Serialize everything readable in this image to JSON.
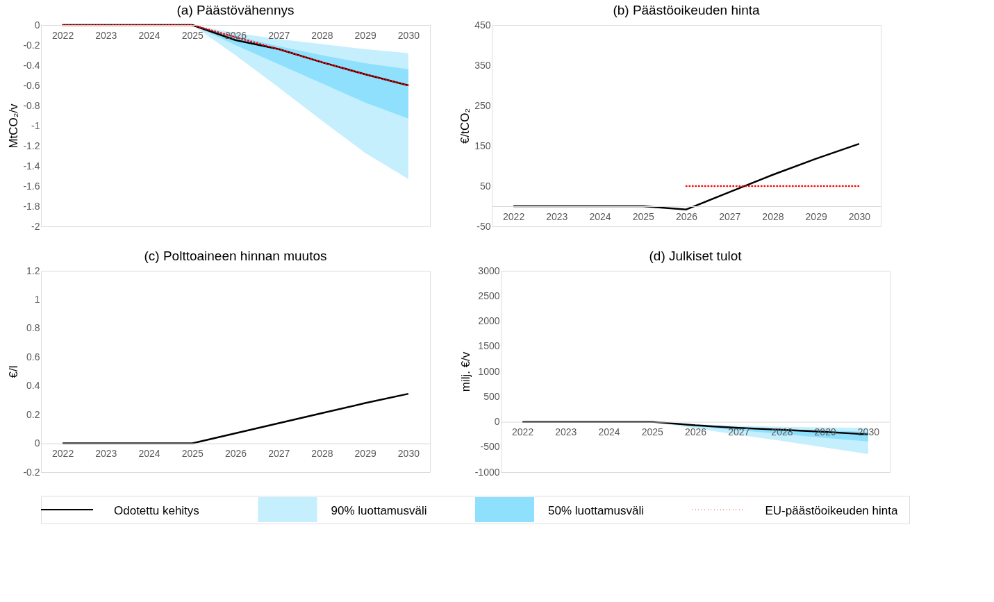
{
  "chart_data": [
    {
      "type": "line",
      "title": "(a) Päästövähennys",
      "ylabel": "MtCO₂/v",
      "categories": [
        "2022",
        "2023",
        "2024",
        "2025",
        "2026",
        "2027",
        "2028",
        "2029",
        "2030"
      ],
      "ylim": [
        -2,
        0
      ],
      "yticks": [
        0,
        -0.2,
        -0.4,
        -0.6,
        -0.8,
        -1,
        -1.2,
        -1.4,
        -1.6,
        -1.8,
        -2
      ],
      "legend": "bottom",
      "series": [
        {
          "name": "Odotettu kehitys",
          "color": "#000000",
          "values": [
            0,
            0,
            0,
            0,
            -0.15,
            -0.24,
            -0.37,
            -0.49,
            -0.6
          ]
        },
        {
          "name": "90% luottamusväli",
          "type": "area",
          "color": "#c6effd",
          "values": [
            null,
            null,
            null,
            null,
            null,
            null,
            null,
            null,
            null
          ],
          "lower": [
            null,
            null,
            null,
            0,
            -0.3,
            -0.62,
            -0.95,
            -1.27,
            -1.53
          ],
          "upper": [
            null,
            null,
            null,
            0,
            -0.08,
            -0.14,
            -0.19,
            -0.24,
            -0.28
          ]
        },
        {
          "name": "50% luottamusväli",
          "type": "area",
          "color": "#8ee0fd",
          "values": [
            null,
            null,
            null,
            null,
            null,
            null,
            null,
            null,
            null
          ],
          "lower": [
            null,
            null,
            null,
            0,
            -0.2,
            -0.39,
            -0.58,
            -0.77,
            -0.93
          ],
          "upper": [
            null,
            null,
            null,
            0,
            -0.11,
            -0.21,
            -0.3,
            -0.38,
            -0.44
          ]
        },
        {
          "name": "EU-päästöoikeuden hinta",
          "color": "#ff0000",
          "line_style": "dotted",
          "values": [
            0,
            0,
            0,
            0,
            -0.12,
            -0.24,
            -0.37,
            -0.49,
            -0.6
          ]
        }
      ]
    },
    {
      "type": "line",
      "title": "(b) Päästöoikeuden hinta",
      "ylabel": "€/tCO₂",
      "categories": [
        "2022",
        "2023",
        "2024",
        "2025",
        "2026",
        "2027",
        "2028",
        "2029",
        "2030"
      ],
      "ylim": [
        -50,
        450
      ],
      "yticks": [
        -50,
        50,
        150,
        250,
        350,
        450
      ],
      "series": [
        {
          "color": "#000000",
          "values": [
            0,
            0,
            0,
            0,
            -8,
            35,
            78,
            118,
            155
          ]
        },
        {
          "color": "#ff0000",
          "line_style": "dotted",
          "values": [
            null,
            null,
            null,
            null,
            50,
            50,
            50,
            50,
            50
          ]
        }
      ]
    },
    {
      "type": "line",
      "title": "(c) Polttoaineen hinnan muutos",
      "ylabel": "€/l",
      "categories": [
        "2022",
        "2023",
        "2024",
        "2025",
        "2026",
        "2027",
        "2028",
        "2029",
        "2030"
      ],
      "ylim": [
        -0.2,
        1.2
      ],
      "yticks": [
        -0.2,
        0,
        0.2,
        0.4,
        0.6,
        0.8,
        1,
        1.2
      ],
      "series": [
        {
          "color": "#000000",
          "values": [
            0,
            0,
            0,
            0,
            0.07,
            0.14,
            0.21,
            0.28,
            0.345
          ]
        }
      ]
    },
    {
      "type": "line",
      "title": "(d) Julkiset tulot",
      "ylabel": "milj. €/v",
      "categories": [
        "2022",
        "2023",
        "2024",
        "2025",
        "2026",
        "2027",
        "2028",
        "2029",
        "2030"
      ],
      "ylim": [
        -1000,
        3000
      ],
      "yticks": [
        -1000,
        -500,
        0,
        500,
        1000,
        1500,
        2000,
        2500,
        3000
      ],
      "series": [
        {
          "type": "area",
          "color": "#c6effd",
          "values": [
            null,
            null,
            null,
            null,
            null,
            null,
            null,
            null,
            null
          ],
          "lower": [
            null,
            null,
            null,
            0,
            -130,
            -260,
            -380,
            -510,
            -640
          ],
          "upper": [
            null,
            null,
            null,
            0,
            -50,
            -80,
            -100,
            -110,
            -120
          ]
        },
        {
          "type": "area",
          "color": "#8ee0fd",
          "values": [
            null,
            null,
            null,
            null,
            null,
            null,
            null,
            null,
            null
          ],
          "lower": [
            null,
            null,
            null,
            0,
            -90,
            -170,
            -240,
            -320,
            -390
          ],
          "upper": [
            null,
            null,
            null,
            0,
            -60,
            -110,
            -140,
            -170,
            -200
          ]
        },
        {
          "color": "#000000",
          "values": [
            0,
            0,
            0,
            0,
            -70,
            -120,
            -160,
            -200,
            -250
          ]
        }
      ]
    }
  ]
}
